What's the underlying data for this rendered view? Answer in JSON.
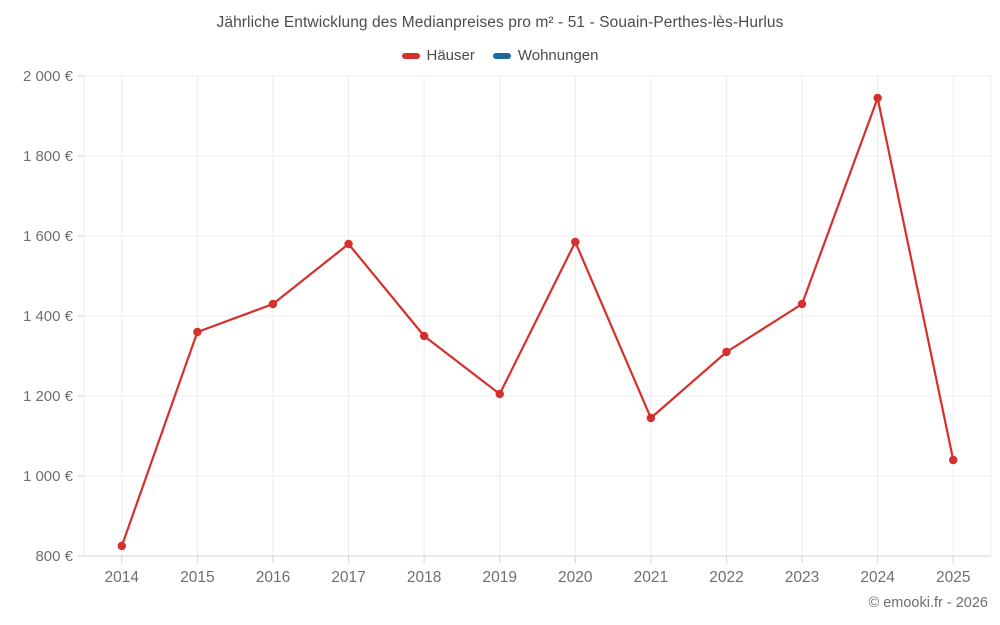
{
  "chart_data": {
    "type": "line",
    "title": "Jährliche Entwicklung des Medianpreises pro m² - 51 - Souain-Perthes-lès-Hurlus",
    "categories": [
      "2014",
      "2015",
      "2016",
      "2017",
      "2018",
      "2019",
      "2020",
      "2021",
      "2022",
      "2023",
      "2024",
      "2025"
    ],
    "series": [
      {
        "name": "Häuser",
        "color": "#d62f2c",
        "values": [
          825,
          1360,
          1430,
          1580,
          1350,
          1205,
          1585,
          1145,
          1310,
          1430,
          1945,
          1040
        ]
      },
      {
        "name": "Wohnungen",
        "color": "#1a6ba0",
        "values": []
      }
    ],
    "ylim": [
      800,
      2000
    ],
    "y_ticks": [
      800,
      1000,
      1200,
      1400,
      1600,
      1800,
      2000
    ],
    "y_tick_labels": [
      "800 €",
      "1 000 €",
      "1 200 €",
      "1 400 €",
      "1 600 €",
      "1 800 €",
      "2 000 €"
    ],
    "grid": true,
    "legend_position": "top",
    "xlabel": "",
    "ylabel": ""
  },
  "footer": {
    "copyright": "© emooki.fr - 2026"
  },
  "colors": {
    "series_hauser": "#d62f2c",
    "series_wohnungen": "#1a6ba0",
    "grid_line": "#ececec",
    "axis_line": "#d4d4d4",
    "axis_text": "#6f6f6f",
    "title_text": "#4c4c4c"
  }
}
